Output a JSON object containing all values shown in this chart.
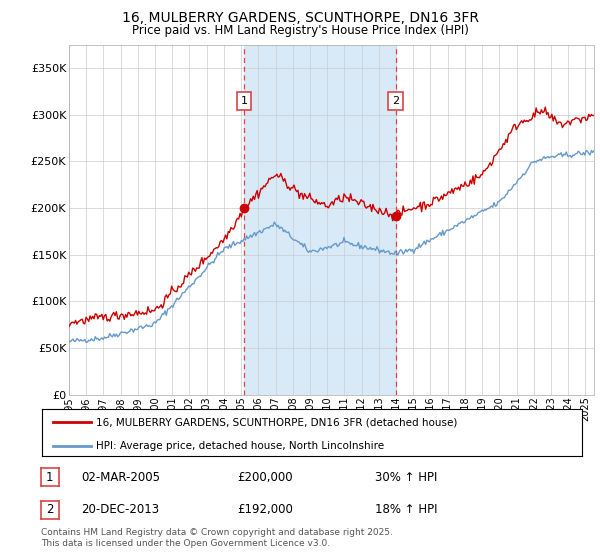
{
  "title": "16, MULBERRY GARDENS, SCUNTHORPE, DN16 3FR",
  "subtitle": "Price paid vs. HM Land Registry's House Price Index (HPI)",
  "legend_line1": "16, MULBERRY GARDENS, SCUNTHORPE, DN16 3FR (detached house)",
  "legend_line2": "HPI: Average price, detached house, North Lincolnshire",
  "footnote": "Contains HM Land Registry data © Crown copyright and database right 2025.\nThis data is licensed under the Open Government Licence v3.0.",
  "sale1_label": "1",
  "sale1_date": "02-MAR-2005",
  "sale1_price": "£200,000",
  "sale1_hpi": "30% ↑ HPI",
  "sale2_label": "2",
  "sale2_date": "20-DEC-2013",
  "sale2_price": "£192,000",
  "sale2_hpi": "18% ↑ HPI",
  "red_color": "#cc0000",
  "blue_color": "#6699cc",
  "vline_color": "#dd4444",
  "shade_color": "#d8eaf8",
  "ylim": [
    0,
    375000
  ],
  "yticks": [
    0,
    50000,
    100000,
    150000,
    200000,
    250000,
    300000,
    350000
  ],
  "ytick_labels": [
    "£0",
    "£50K",
    "£100K",
    "£150K",
    "£200K",
    "£250K",
    "£300K",
    "£350K"
  ],
  "sale1_x": 2005.17,
  "sale1_y": 200000,
  "sale2_x": 2013.97,
  "sale2_y": 192000,
  "xmin": 1995,
  "xmax": 2025.5
}
